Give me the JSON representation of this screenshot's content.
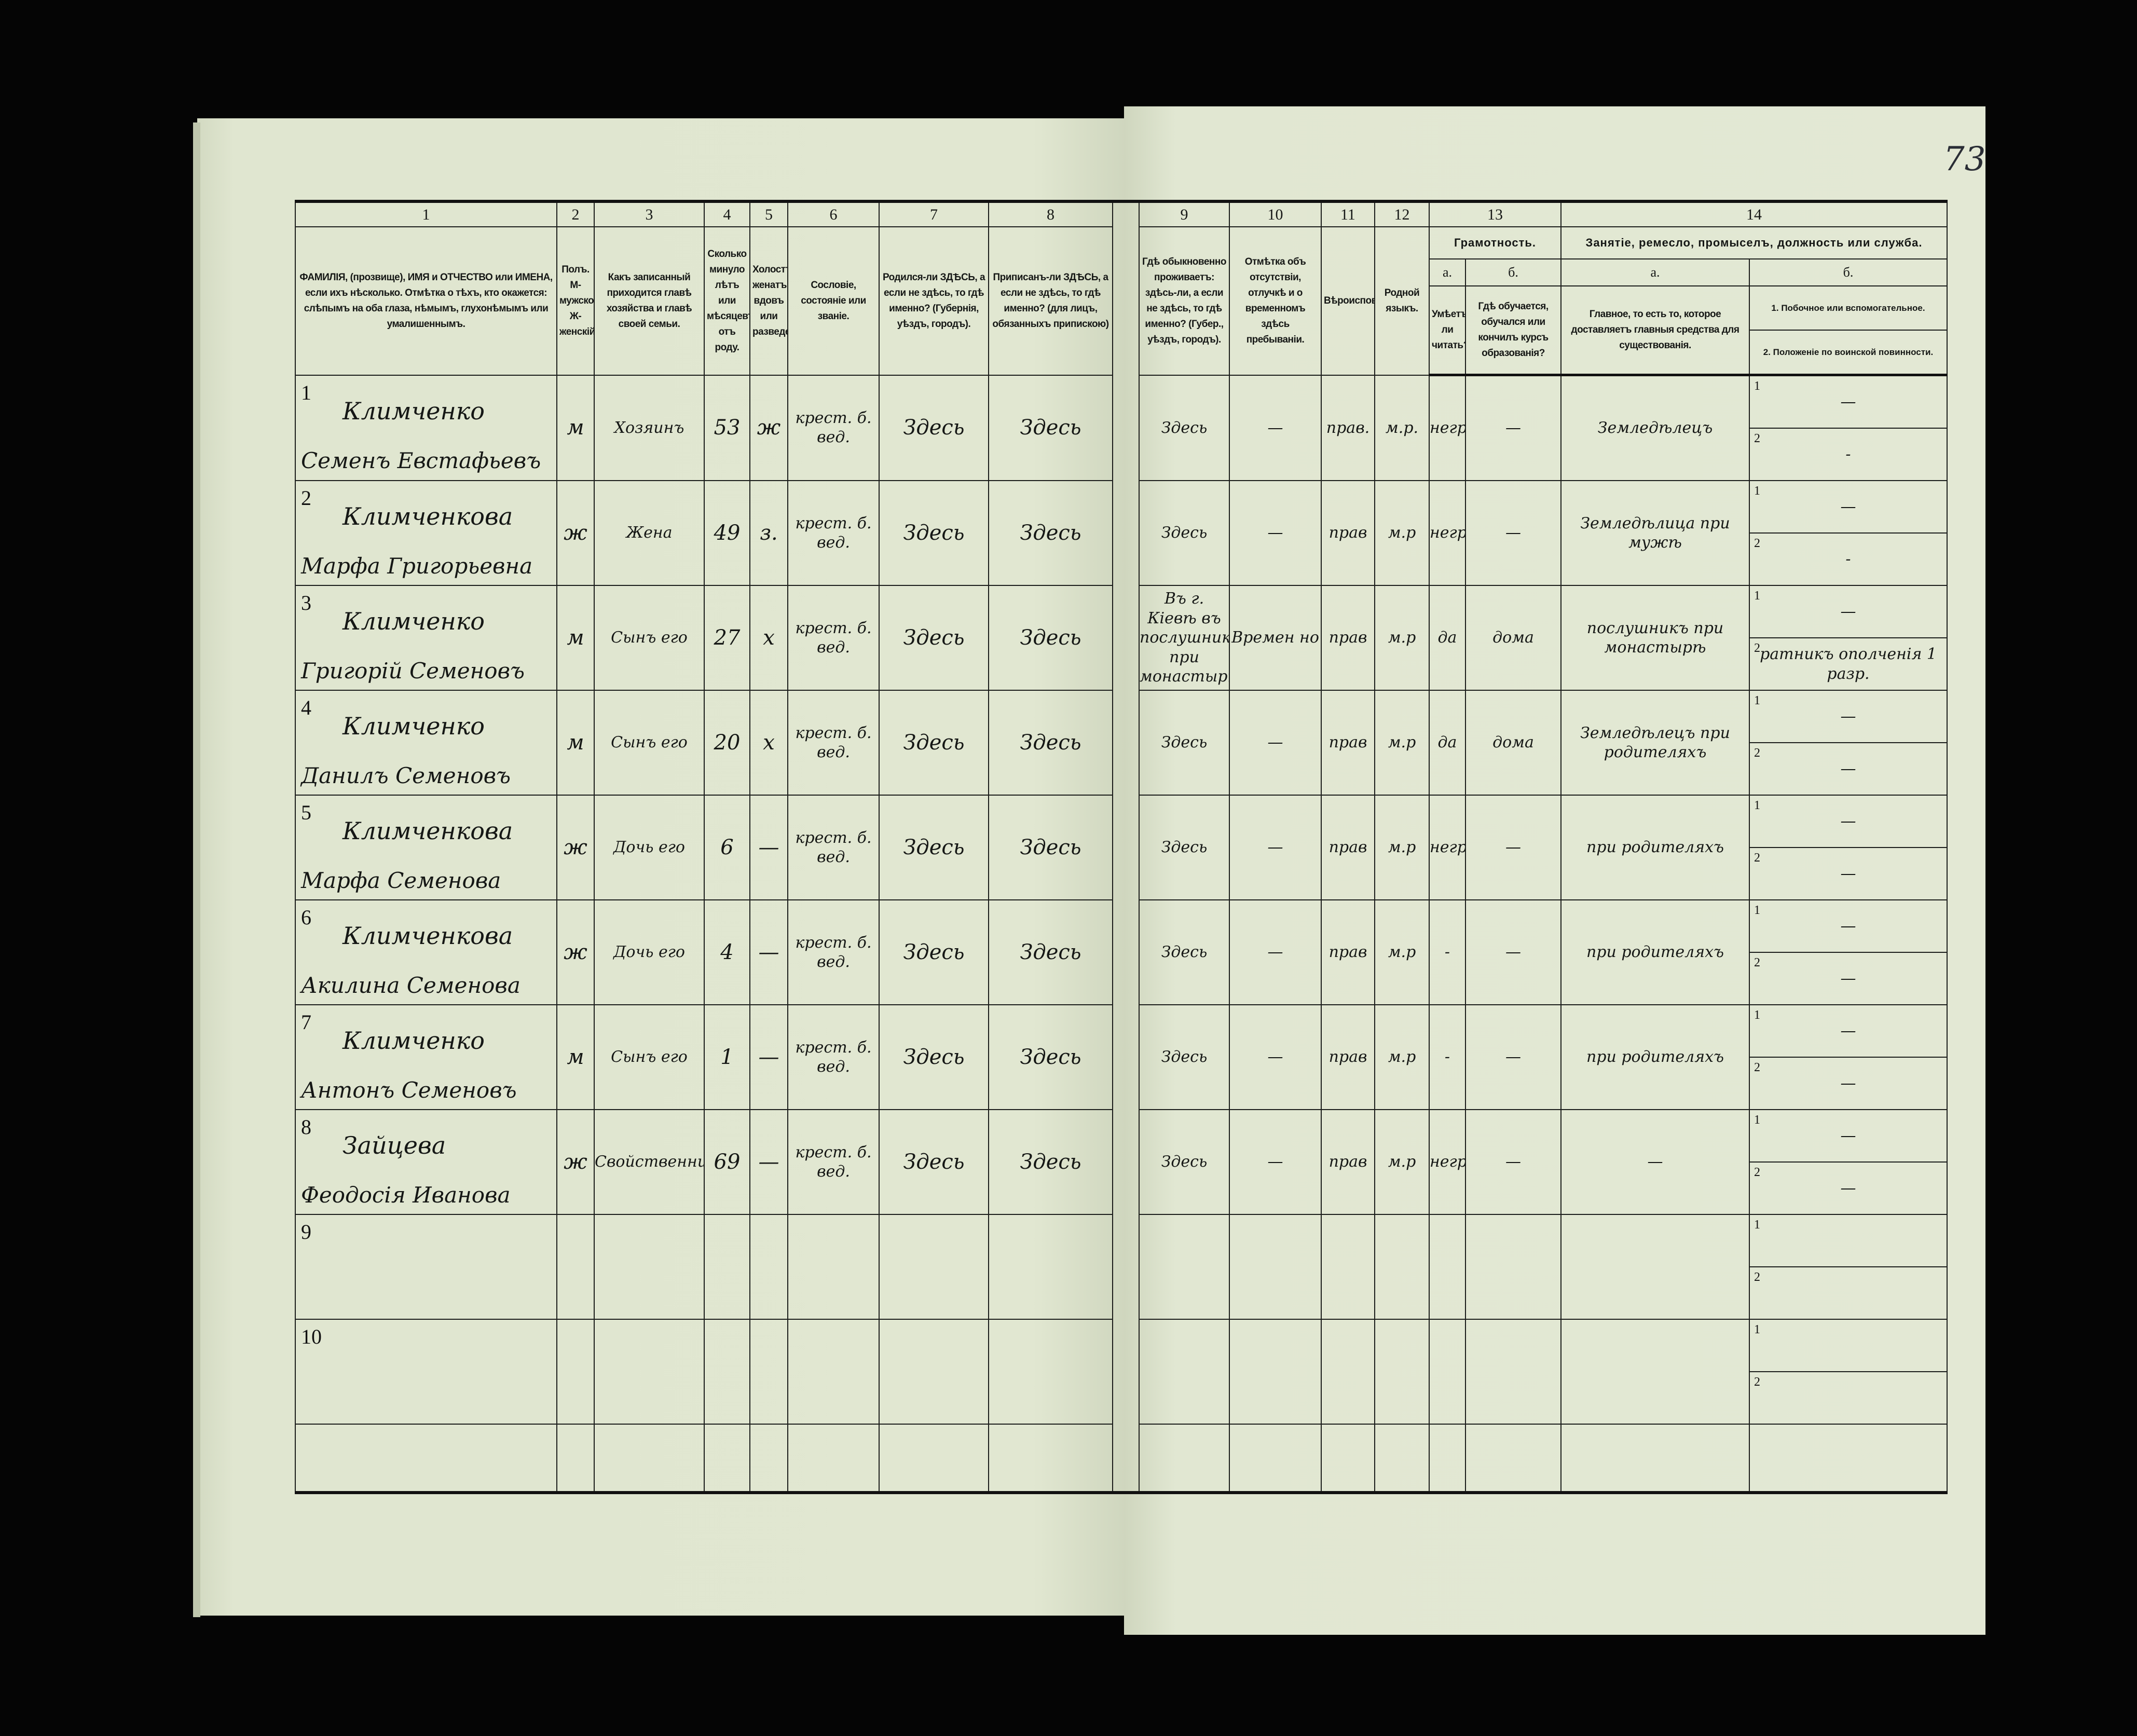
{
  "page_number": "73",
  "header": {
    "col_numbers": [
      "1",
      "2",
      "3",
      "4",
      "5",
      "6",
      "7",
      "8",
      "9",
      "10",
      "11",
      "12",
      "13",
      "14"
    ],
    "c1": "ФАМИЛІЯ, (прозвище), ИМЯ и ОТЧЕСТВО или ИМЕНА, если ихъ нѣсколько. Отмѣтка о тѣхъ, кто окажется: слѣпымъ на оба глаза, нѣмымъ, глухонѣмымъ или умалишеннымъ.",
    "c2": "Полъ. М-мужской. Ж-женскій.",
    "c3": "Какъ записанный приходится главѣ хозяйства и главѣ своей семьи.",
    "c4": "Сколько минуло лѣтъ или мѣсяцевъ отъ роду.",
    "c5": "Холостъ, женатъ, вдовъ или разведенъ.",
    "c6": "Сословіе, состояніе или званіе.",
    "c7": "Родился-ли ЗДѢСЬ, а если не здѣсь, то гдѣ именно? (Губернія, уѣздъ, городъ).",
    "c8": "Приписанъ-ли ЗДѢСЬ, а если не здѣсь, то гдѣ именно? (для лицъ, обязанныхъ припискою)",
    "c9": "Гдѣ обыкновенно проживаетъ: здѣсь-ли, а если не здѣсь, то гдѣ именно? (Губер., уѣздъ, городъ).",
    "c10": "Отмѣтка объ отсутствіи, отлучкѣ и о временномъ здѣсь пребываніи.",
    "c11": "Вѣроисповѣданіе.",
    "c12": "Родной языкъ.",
    "c13_title": "Грамотность.",
    "c13a_label": "а.",
    "c13b_label": "б.",
    "c13a": "Умѣетъ-ли читать?",
    "c13b": "Гдѣ обучается, обучался или кончилъ курсъ образованія?",
    "c14_title": "Занятіе, ремесло, промыселъ, должность или служба.",
    "c14a_label": "а.",
    "c14b_label": "б.",
    "c14a": "Главное, то есть то, которое доставляетъ главныя средства для существованія.",
    "c14b_1": "1. Побочное или вспомогательное.",
    "c14b_2": "2. Положеніе по воинской повинности."
  },
  "rows": [
    {
      "num": "1",
      "surname": "Климченко",
      "given": "Семенъ Евстафьевъ",
      "sex": "м",
      "relation": "Хозяинъ",
      "age": "53",
      "marital": "ж",
      "estate": "крест. б. вед.",
      "born": "Здесь",
      "registered": "Здесь",
      "resides": "Здесь",
      "absence": "—",
      "religion": "прав.",
      "language": "м.р.",
      "literate": "негр.",
      "education": "—",
      "occupation": "Земледѣлецъ",
      "side_1": "—",
      "side_2": "-"
    },
    {
      "num": "2",
      "surname": "Климченкова",
      "given": "Марфа Григорьевна",
      "sex": "ж",
      "relation": "Жена",
      "age": "49",
      "marital": "з.",
      "estate": "крест. б. вед.",
      "born": "Здесь",
      "registered": "Здесь",
      "resides": "Здесь",
      "absence": "—",
      "religion": "прав",
      "language": "м.р",
      "literate": "негр",
      "education": "—",
      "occupation": "Земледѣлица при мужѣ",
      "side_1": "—",
      "side_2": "-"
    },
    {
      "num": "3",
      "surname": "Климченко",
      "given": "Григорій Семеновъ",
      "sex": "м",
      "relation": "Сынъ его",
      "age": "27",
      "marital": "х",
      "estate": "крест. б. вед.",
      "born": "Здесь",
      "registered": "Здесь",
      "resides": "Въ г. Кіевѣ въ послушникахъ при монастырѣ",
      "absence": "Времен но",
      "religion": "прав",
      "language": "м.р",
      "literate": "да",
      "education": "дома",
      "occupation": "послушникъ при монастырѣ",
      "side_1": "—",
      "side_2": "ратникъ ополченія 1 разр."
    },
    {
      "num": "4",
      "surname": "Климченко",
      "given": "Данилъ Семеновъ",
      "sex": "м",
      "relation": "Сынъ его",
      "age": "20",
      "marital": "х",
      "estate": "крест. б. вед.",
      "born": "Здесь",
      "registered": "Здесь",
      "resides": "Здесь",
      "absence": "—",
      "religion": "прав",
      "language": "м.р",
      "literate": "да",
      "education": "дома",
      "occupation": "Земледѣлецъ при родителяхъ",
      "side_1": "—",
      "side_2": "—"
    },
    {
      "num": "5",
      "surname": "Климченкова",
      "given": "Марфа Семенова",
      "sex": "ж",
      "relation": "Дочь его",
      "age": "6",
      "marital": "—",
      "estate": "крест. б. вед.",
      "born": "Здесь",
      "registered": "Здесь",
      "resides": "Здесь",
      "absence": "—",
      "religion": "прав",
      "language": "м.р",
      "literate": "негр",
      "education": "—",
      "occupation": "при родителяхъ",
      "side_1": "—",
      "side_2": "—"
    },
    {
      "num": "6",
      "surname": "Климченкова",
      "given": "Акилина Семенова",
      "sex": "ж",
      "relation": "Дочь его",
      "age": "4",
      "marital": "—",
      "estate": "крест. б. вед.",
      "born": "Здесь",
      "registered": "Здесь",
      "resides": "Здесь",
      "absence": "—",
      "religion": "прав",
      "language": "м.р",
      "literate": "-",
      "education": "—",
      "occupation": "при родителяхъ",
      "side_1": "—",
      "side_2": "—"
    },
    {
      "num": "7",
      "surname": "Климченко",
      "given": "Антонъ Семеновъ",
      "sex": "м",
      "relation": "Сынъ его",
      "age": "1",
      "marital": "—",
      "estate": "крест. б. вед.",
      "born": "Здесь",
      "registered": "Здесь",
      "resides": "Здесь",
      "absence": "—",
      "religion": "прав",
      "language": "м.р",
      "literate": "-",
      "education": "—",
      "occupation": "при родителяхъ",
      "side_1": "—",
      "side_2": "—"
    },
    {
      "num": "8",
      "surname": "Зайцева",
      "given": "Феодосія Иванова",
      "sex": "ж",
      "relation": "Свойственница",
      "age": "69",
      "marital": "—",
      "estate": "крест. б. вед.",
      "born": "Здесь",
      "registered": "Здесь",
      "resides": "Здесь",
      "absence": "—",
      "religion": "прав",
      "language": "м.р",
      "literate": "негр",
      "education": "—",
      "occupation": "—",
      "side_1": "—",
      "side_2": "—"
    },
    {
      "num": "9",
      "surname": "",
      "given": "",
      "sex": "",
      "relation": "",
      "age": "",
      "marital": "",
      "estate": "",
      "born": "",
      "registered": "",
      "resides": "",
      "absence": "",
      "religion": "",
      "language": "",
      "literate": "",
      "education": "",
      "occupation": "",
      "side_1": "",
      "side_2": ""
    },
    {
      "num": "10",
      "surname": "",
      "given": "",
      "sex": "",
      "relation": "",
      "age": "",
      "marital": "",
      "estate": "",
      "born": "",
      "registered": "",
      "resides": "",
      "absence": "",
      "religion": "",
      "language": "",
      "literate": "",
      "education": "",
      "occupation": "",
      "side_1": "",
      "side_2": ""
    }
  ],
  "sub_labels": [
    "1",
    "2"
  ]
}
